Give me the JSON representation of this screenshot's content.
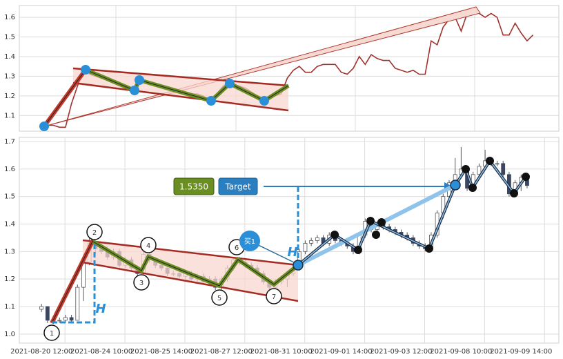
{
  "chart_data": [
    {
      "type": "line",
      "color": "#a0302c",
      "grid": true,
      "xlim": [
        -3.7,
        86.3
      ],
      "ylim": [
        1.02,
        1.66
      ],
      "yticks": [
        1.1,
        1.2,
        1.3,
        1.4,
        1.5,
        1.6
      ],
      "values": [
        1.05,
        1.05,
        1.05,
        1.04,
        1.04,
        1.16,
        1.25,
        1.33,
        1.31,
        1.3,
        1.29,
        1.28,
        1.27,
        1.26,
        1.24,
        1.22,
        1.28,
        1.28,
        1.27,
        1.26,
        1.25,
        1.24,
        1.23,
        1.23,
        1.22,
        1.21,
        1.21,
        1.2,
        1.17,
        1.2,
        1.24,
        1.27,
        1.26,
        1.25,
        1.24,
        1.22,
        1.2,
        1.18,
        1.19,
        1.2,
        1.21,
        1.29,
        1.33,
        1.35,
        1.32,
        1.32,
        1.35,
        1.36,
        1.36,
        1.36,
        1.32,
        1.31,
        1.34,
        1.4,
        1.36,
        1.41,
        1.39,
        1.38,
        1.38,
        1.34,
        1.33,
        1.32,
        1.33,
        1.31,
        1.31,
        1.48,
        1.46,
        1.55,
        1.59,
        1.6,
        1.53,
        1.62,
        1.63,
        1.62,
        1.6,
        1.62,
        1.6,
        1.51,
        1.51,
        1.57,
        1.52,
        1.48,
        1.51
      ]
    },
    {
      "type": "candlestick",
      "up_color": "#ffffff",
      "down_color": "#3b4660",
      "grid": true,
      "xlim": [
        -3.7,
        86.3
      ],
      "ylim": [
        0.967,
        1.715
      ],
      "yticks": [
        {
          "value": 1,
          "label": "1.0"
        },
        1.1,
        1.2,
        1.3,
        1.4,
        1.5,
        1.6,
        1.7
      ],
      "xticks": [
        {
          "value": 0,
          "label": "2021-08-20 12:00"
        },
        {
          "value": 10,
          "label": "2021-08-24 10:00"
        },
        {
          "value": 20,
          "label": "2021-08-25 14:00"
        },
        {
          "value": 30,
          "label": "2021-08-27 12:00"
        },
        {
          "value": 40,
          "label": "2021-08-31 10:00"
        },
        {
          "value": 50,
          "label": "2021-09-01 14:00"
        },
        {
          "value": 60,
          "label": "2021-09-03 12:00"
        },
        {
          "value": 70,
          "label": "2021-09-08 10:00"
        },
        {
          "value": 80,
          "label": "2021-09-09 14:00"
        }
      ],
      "ohlc": [
        [
          1.09,
          1.11,
          1.08,
          1.1
        ],
        [
          1.1,
          1.1,
          1.04,
          1.05
        ],
        [
          1.05,
          1.06,
          1.04,
          1.05
        ],
        [
          1.05,
          1.06,
          1.04,
          1.05
        ],
        [
          1.05,
          1.07,
          1.04,
          1.06
        ],
        [
          1.06,
          1.07,
          1.04,
          1.05
        ],
        [
          1.05,
          1.18,
          1.05,
          1.17
        ],
        [
          1.17,
          1.28,
          1.12,
          1.26
        ],
        [
          1.26,
          1.35,
          1.25,
          1.33
        ],
        [
          1.33,
          1.34,
          1.29,
          1.31
        ],
        [
          1.31,
          1.33,
          1.29,
          1.3
        ],
        [
          1.3,
          1.32,
          1.27,
          1.28
        ],
        [
          1.28,
          1.31,
          1.27,
          1.3
        ],
        [
          1.3,
          1.31,
          1.24,
          1.25
        ],
        [
          1.25,
          1.28,
          1.24,
          1.27
        ],
        [
          1.27,
          1.28,
          1.23,
          1.24
        ],
        [
          1.24,
          1.25,
          1.21,
          1.22
        ],
        [
          1.22,
          1.3,
          1.21,
          1.29
        ],
        [
          1.29,
          1.3,
          1.26,
          1.27
        ],
        [
          1.27,
          1.28,
          1.24,
          1.25
        ],
        [
          1.25,
          1.26,
          1.23,
          1.24
        ],
        [
          1.24,
          1.25,
          1.21,
          1.22
        ],
        [
          1.22,
          1.23,
          1.21,
          1.22
        ],
        [
          1.22,
          1.23,
          1.2,
          1.21
        ],
        [
          1.21,
          1.23,
          1.2,
          1.22
        ],
        [
          1.22,
          1.23,
          1.19,
          1.2
        ],
        [
          1.2,
          1.22,
          1.19,
          1.21
        ],
        [
          1.21,
          1.22,
          1.18,
          1.19
        ],
        [
          1.19,
          1.21,
          1.18,
          1.2
        ],
        [
          1.2,
          1.21,
          1.16,
          1.17
        ],
        [
          1.17,
          1.21,
          1.16,
          1.2
        ],
        [
          1.2,
          1.25,
          1.19,
          1.24
        ],
        [
          1.24,
          1.28,
          1.23,
          1.27
        ],
        [
          1.27,
          1.28,
          1.25,
          1.26
        ],
        [
          1.26,
          1.27,
          1.24,
          1.25
        ],
        [
          1.25,
          1.26,
          1.23,
          1.24
        ],
        [
          1.24,
          1.25,
          1.21,
          1.22
        ],
        [
          1.22,
          1.23,
          1.18,
          1.19
        ],
        [
          1.19,
          1.2,
          1.16,
          1.17
        ],
        [
          1.17,
          1.2,
          1.16,
          1.19
        ],
        [
          1.19,
          1.21,
          1.18,
          1.2
        ],
        [
          1.2,
          1.23,
          1.17,
          1.22
        ],
        [
          1.22,
          1.25,
          1.21,
          1.24
        ],
        [
          1.24,
          1.31,
          1.23,
          1.3
        ],
        [
          1.3,
          1.34,
          1.29,
          1.33
        ],
        [
          1.33,
          1.35,
          1.32,
          1.34
        ],
        [
          1.34,
          1.36,
          1.33,
          1.35
        ],
        [
          1.35,
          1.36,
          1.32,
          1.33
        ],
        [
          1.33,
          1.37,
          1.32,
          1.36
        ],
        [
          1.36,
          1.37,
          1.33,
          1.34
        ],
        [
          1.34,
          1.35,
          1.32,
          1.33
        ],
        [
          1.33,
          1.34,
          1.31,
          1.32
        ],
        [
          1.32,
          1.33,
          1.29,
          1.3
        ],
        [
          1.3,
          1.37,
          1.29,
          1.36
        ],
        [
          1.36,
          1.42,
          1.35,
          1.41
        ],
        [
          1.41,
          1.42,
          1.37,
          1.38
        ],
        [
          1.38,
          1.41,
          1.37,
          1.4
        ],
        [
          1.4,
          1.41,
          1.38,
          1.39
        ],
        [
          1.39,
          1.4,
          1.37,
          1.38
        ],
        [
          1.38,
          1.39,
          1.36,
          1.37
        ],
        [
          1.37,
          1.38,
          1.35,
          1.36
        ],
        [
          1.36,
          1.37,
          1.34,
          1.35
        ],
        [
          1.35,
          1.36,
          1.32,
          1.33
        ],
        [
          1.33,
          1.34,
          1.31,
          1.32
        ],
        [
          1.32,
          1.33,
          1.3,
          1.31
        ],
        [
          1.31,
          1.37,
          1.3,
          1.36
        ],
        [
          1.36,
          1.45,
          1.35,
          1.44
        ],
        [
          1.44,
          1.51,
          1.42,
          1.5
        ],
        [
          1.5,
          1.56,
          1.48,
          1.55
        ],
        [
          1.55,
          1.64,
          1.54,
          1.58
        ],
        [
          1.58,
          1.68,
          1.57,
          1.6
        ],
        [
          1.6,
          1.61,
          1.52,
          1.53
        ],
        [
          1.53,
          1.59,
          1.52,
          1.58
        ],
        [
          1.58,
          1.62,
          1.57,
          1.61
        ],
        [
          1.61,
          1.67,
          1.6,
          1.63
        ],
        [
          1.63,
          1.64,
          1.61,
          1.62
        ],
        [
          1.62,
          1.63,
          1.61,
          1.62
        ],
        [
          1.62,
          1.63,
          1.57,
          1.58
        ],
        [
          1.58,
          1.59,
          1.5,
          1.51
        ],
        [
          1.51,
          1.56,
          1.5,
          1.55
        ],
        [
          1.55,
          1.58,
          1.52,
          1.57
        ],
        [
          1.57,
          1.58,
          1.53,
          1.54
        ]
      ],
      "annotations": {
        "price": "1.5350",
        "target": "Target",
        "buy": "买1",
        "height_labels": [
          "H",
          "H"
        ],
        "points": [
          "1",
          "2",
          "3",
          "4",
          "5",
          "6",
          "7"
        ]
      }
    }
  ]
}
